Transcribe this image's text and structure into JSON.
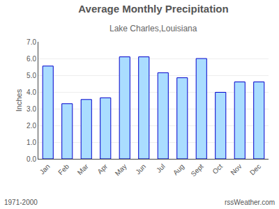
{
  "chart_data": {
    "type": "bar",
    "title": "Average Monthly Precipitation",
    "subtitle": "Lake Charles,Louisiana",
    "ylabel": "Inches",
    "categories": [
      "Jan",
      "Feb",
      "Mar",
      "Apr",
      "May",
      "Jun",
      "Jul",
      "Aug",
      "Sept",
      "Oct",
      "Nov",
      "Dec"
    ],
    "values": [
      5.55,
      3.3,
      3.55,
      3.65,
      6.1,
      6.1,
      5.15,
      4.85,
      6.0,
      3.98,
      4.6,
      4.6
    ],
    "color": "#AADDFF",
    "ylim": [
      0.0,
      7.0
    ],
    "yticks": [
      {
        "value": 0.0,
        "label": "0.0"
      },
      {
        "value": 1.0,
        "label": "1.0"
      },
      {
        "value": 2.0,
        "label": "2.0"
      },
      {
        "value": 3.0,
        "label": "3.0"
      },
      {
        "value": 4.0,
        "label": "4.0"
      },
      {
        "value": 5.0,
        "label": "5.0"
      },
      {
        "value": 6.0,
        "label": "6.0"
      },
      {
        "value": 7.0,
        "label": "7.0"
      }
    ],
    "grid": true,
    "annotations": [
      "1971-2000",
      "rssWeather.com"
    ]
  }
}
